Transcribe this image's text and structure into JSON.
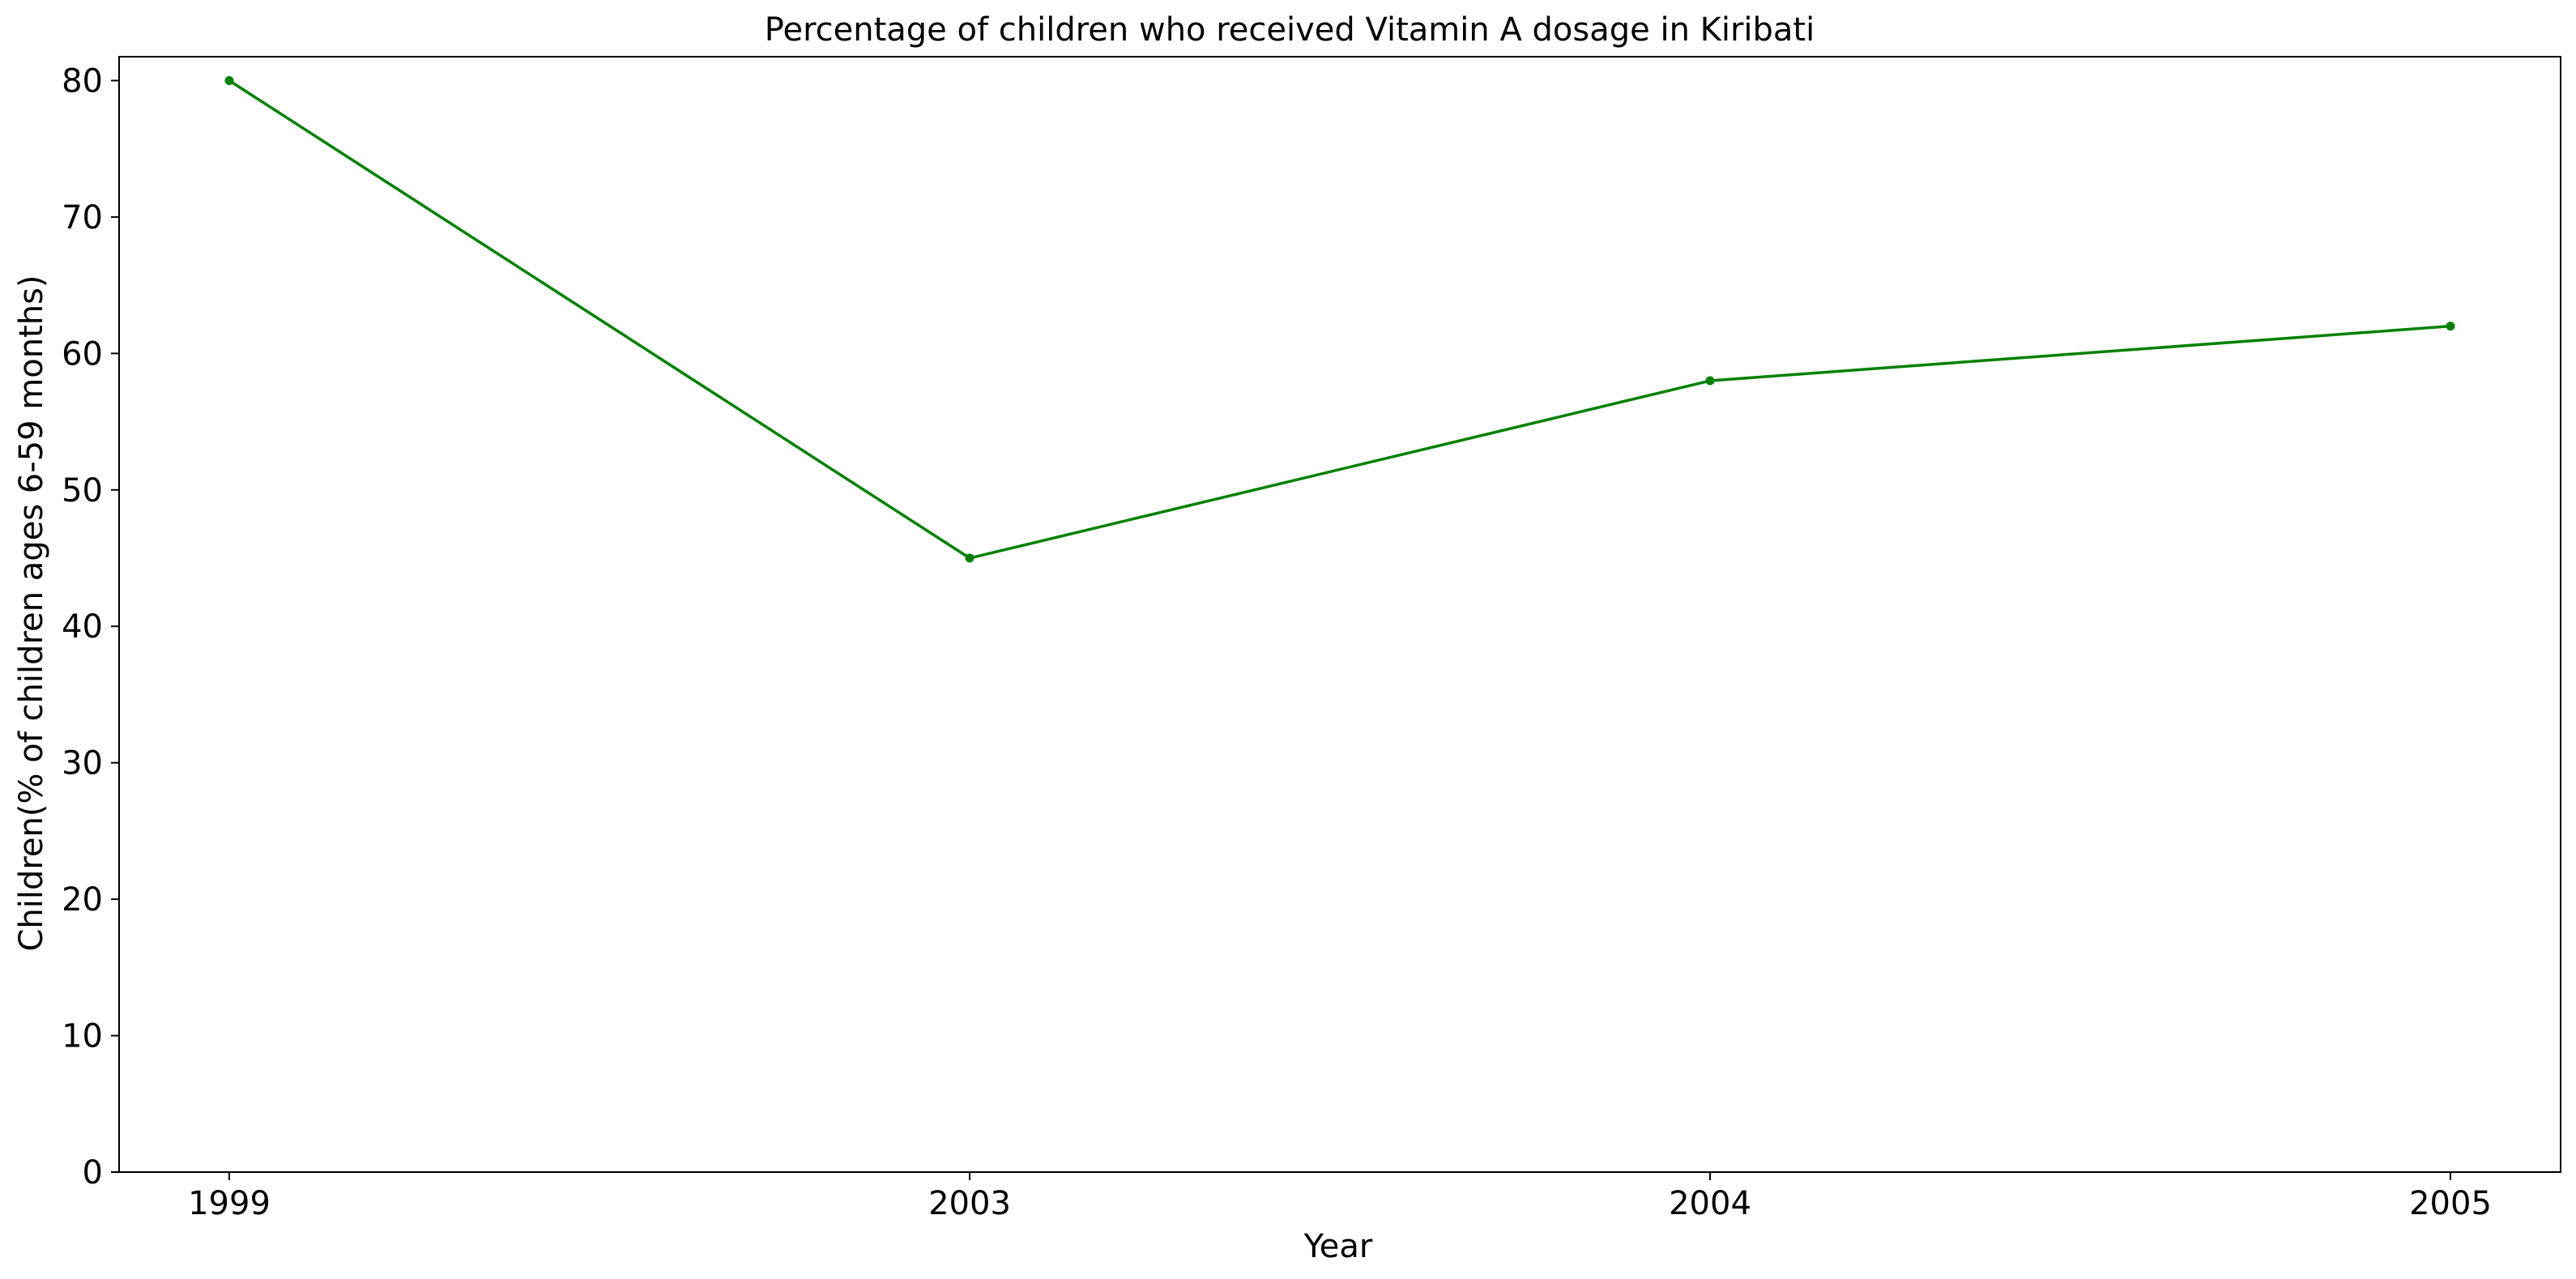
{
  "chart_data": {
    "type": "line",
    "title": "Percentage of children who received Vitamin A dosage in Kiribati",
    "xlabel": "Year",
    "ylabel": "Children(% of children ages 6-59 months)",
    "categories": [
      "1999",
      "2003",
      "2004",
      "2005"
    ],
    "series": [
      {
        "values": [
          80,
          45,
          58,
          62
        ],
        "color": "#008000"
      }
    ],
    "ylim": [
      0,
      81.75
    ],
    "yticks": [
      0,
      10,
      20,
      30,
      40,
      50,
      60,
      70,
      80
    ],
    "grid": false,
    "legend": "none"
  }
}
